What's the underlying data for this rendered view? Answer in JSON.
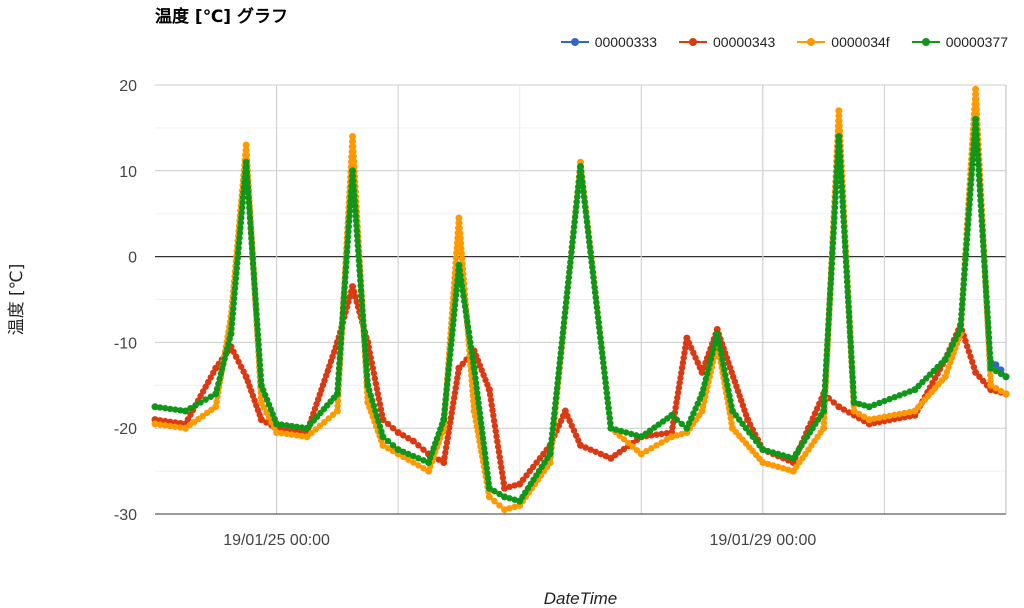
{
  "chart_data": {
    "type": "line",
    "title": "温度 [℃] グラフ",
    "xlabel": "DateTime",
    "ylabel": "温度 [℃]",
    "ylim": [
      -30,
      20
    ],
    "yticks": [
      20,
      10,
      0,
      -10,
      -20,
      -30
    ],
    "xlim": [
      "19/01/24 00:00",
      "19/01/31 00:00"
    ],
    "xtick_labels": [
      {
        "x": "19/01/25 00:00",
        "label": "19/01/25 00:00"
      },
      {
        "x": "19/01/29 00:00",
        "label": "19/01/29 00:00"
      }
    ],
    "grid": true,
    "legend_position": "top-right",
    "series": [
      {
        "name": "00000333",
        "color": "#3366cc",
        "x": [
          "19/01/30 21:00",
          "19/01/30 22:00",
          "19/01/30 23:00",
          "19/01/31 00:00"
        ],
        "y": [
          -12.3,
          -12.6,
          -13.2,
          -14
        ]
      },
      {
        "name": "00000343",
        "color": "#dc3912",
        "x": [
          "19/01/24 00:00",
          "19/01/24 06:00",
          "19/01/24 12:00",
          "19/01/24 15:00",
          "19/01/24 18:00",
          "19/01/24 21:00",
          "19/01/25 00:00",
          "19/01/25 06:00",
          "19/01/25 12:00",
          "19/01/25 15:00",
          "19/01/25 18:00",
          "19/01/25 21:00",
          "19/01/26 00:00",
          "19/01/26 03:00",
          "19/01/26 06:00",
          "19/01/26 09:00",
          "19/01/26 12:00",
          "19/01/26 15:00",
          "19/01/26 18:00",
          "19/01/26 21:00",
          "19/01/27 00:00",
          "19/01/27 06:00",
          "19/01/27 09:00",
          "19/01/27 12:00",
          "19/01/27 18:00",
          "19/01/28 00:00",
          "19/01/28 06:00",
          "19/01/28 09:00",
          "19/01/28 12:00",
          "19/01/28 15:00",
          "19/01/28 21:00",
          "19/01/29 00:00",
          "19/01/29 06:00",
          "19/01/29 09:00",
          "19/01/29 12:00",
          "19/01/29 15:00",
          "19/01/29 21:00",
          "19/01/30 06:00",
          "19/01/30 12:00",
          "19/01/30 15:00",
          "19/01/30 18:00",
          "19/01/30 21:00",
          "19/01/31 00:00"
        ],
        "y": [
          -19,
          -19.5,
          -13,
          -10.5,
          -14,
          -19,
          -20,
          -20.5,
          -10,
          -3.5,
          -10,
          -19,
          -20.5,
          -21.5,
          -23,
          -24,
          -13,
          -11,
          -15.5,
          -27,
          -26.5,
          -22,
          -18,
          -22,
          -23.5,
          -21,
          -20.5,
          -9.5,
          -13.5,
          -8.5,
          -19,
          -22.5,
          -24,
          -20,
          -16,
          -17.5,
          -19.5,
          -18.5,
          -12,
          -8,
          -13.5,
          -15.5,
          -16
        ]
      },
      {
        "name": "0000034f",
        "color": "#ff9900",
        "x": [
          "19/01/24 00:00",
          "19/01/24 06:00",
          "19/01/24 12:00",
          "19/01/24 15:00",
          "19/01/24 18:00",
          "19/01/24 21:00",
          "19/01/25 00:00",
          "19/01/25 06:00",
          "19/01/25 12:00",
          "19/01/25 15:00",
          "19/01/25 18:00",
          "19/01/25 21:00",
          "19/01/26 00:00",
          "19/01/26 06:00",
          "19/01/26 09:00",
          "19/01/26 12:00",
          "19/01/26 15:00",
          "19/01/26 18:00",
          "19/01/26 21:00",
          "19/01/27 00:00",
          "19/01/27 06:00",
          "19/01/27 12:00",
          "19/01/27 18:00",
          "19/01/28 00:00",
          "19/01/28 06:00",
          "19/01/28 09:00",
          "19/01/28 12:00",
          "19/01/28 15:00",
          "19/01/28 18:00",
          "19/01/29 00:00",
          "19/01/29 06:00",
          "19/01/29 12:00",
          "19/01/29 15:00",
          "19/01/29 18:00",
          "19/01/29 21:00",
          "19/01/30 06:00",
          "19/01/30 12:00",
          "19/01/30 15:00",
          "19/01/30 18:00",
          "19/01/30 21:00",
          "19/01/31 00:00"
        ],
        "y": [
          -19.5,
          -20,
          -17.5,
          -7,
          13,
          -17,
          -20.5,
          -21,
          -18,
          14,
          -17,
          -22,
          -23,
          -25,
          -20,
          4.5,
          -18,
          -28,
          -29.5,
          -29,
          -24,
          11,
          -20,
          -23,
          -21,
          -20.5,
          -18,
          -10,
          -20,
          -24,
          -25,
          -20,
          17,
          -18,
          -19,
          -18,
          -14,
          -9,
          19.5,
          -15,
          -16
        ]
      },
      {
        "name": "00000377",
        "color": "#109618",
        "x": [
          "19/01/24 00:00",
          "19/01/24 06:00",
          "19/01/24 12:00",
          "19/01/24 15:00",
          "19/01/24 18:00",
          "19/01/24 21:00",
          "19/01/25 00:00",
          "19/01/25 06:00",
          "19/01/25 12:00",
          "19/01/25 15:00",
          "19/01/25 18:00",
          "19/01/25 21:00",
          "19/01/26 00:00",
          "19/01/26 06:00",
          "19/01/26 09:00",
          "19/01/26 12:00",
          "19/01/26 15:00",
          "19/01/26 18:00",
          "19/01/26 21:00",
          "19/01/27 00:00",
          "19/01/27 06:00",
          "19/01/27 12:00",
          "19/01/27 18:00",
          "19/01/28 00:00",
          "19/01/28 06:00",
          "19/01/28 09:00",
          "19/01/28 12:00",
          "19/01/28 15:00",
          "19/01/28 18:00",
          "19/01/29 00:00",
          "19/01/29 06:00",
          "19/01/29 12:00",
          "19/01/29 15:00",
          "19/01/29 18:00",
          "19/01/29 21:00",
          "19/01/30 06:00",
          "19/01/30 12:00",
          "19/01/30 15:00",
          "19/01/30 18:00",
          "19/01/30 21:00",
          "19/01/31 00:00"
        ],
        "y": [
          -17.5,
          -18,
          -16,
          -9,
          11,
          -15,
          -19.5,
          -20,
          -16,
          10,
          -15,
          -21,
          -22.5,
          -24,
          -19,
          -1,
          -13,
          -27,
          -28,
          -28.5,
          -23,
          10.5,
          -20,
          -21,
          -18.5,
          -20,
          -16,
          -9,
          -18,
          -22.5,
          -23.5,
          -18,
          14,
          -17,
          -17.5,
          -15.5,
          -12,
          -8.5,
          16,
          -13,
          -14
        ]
      }
    ]
  }
}
